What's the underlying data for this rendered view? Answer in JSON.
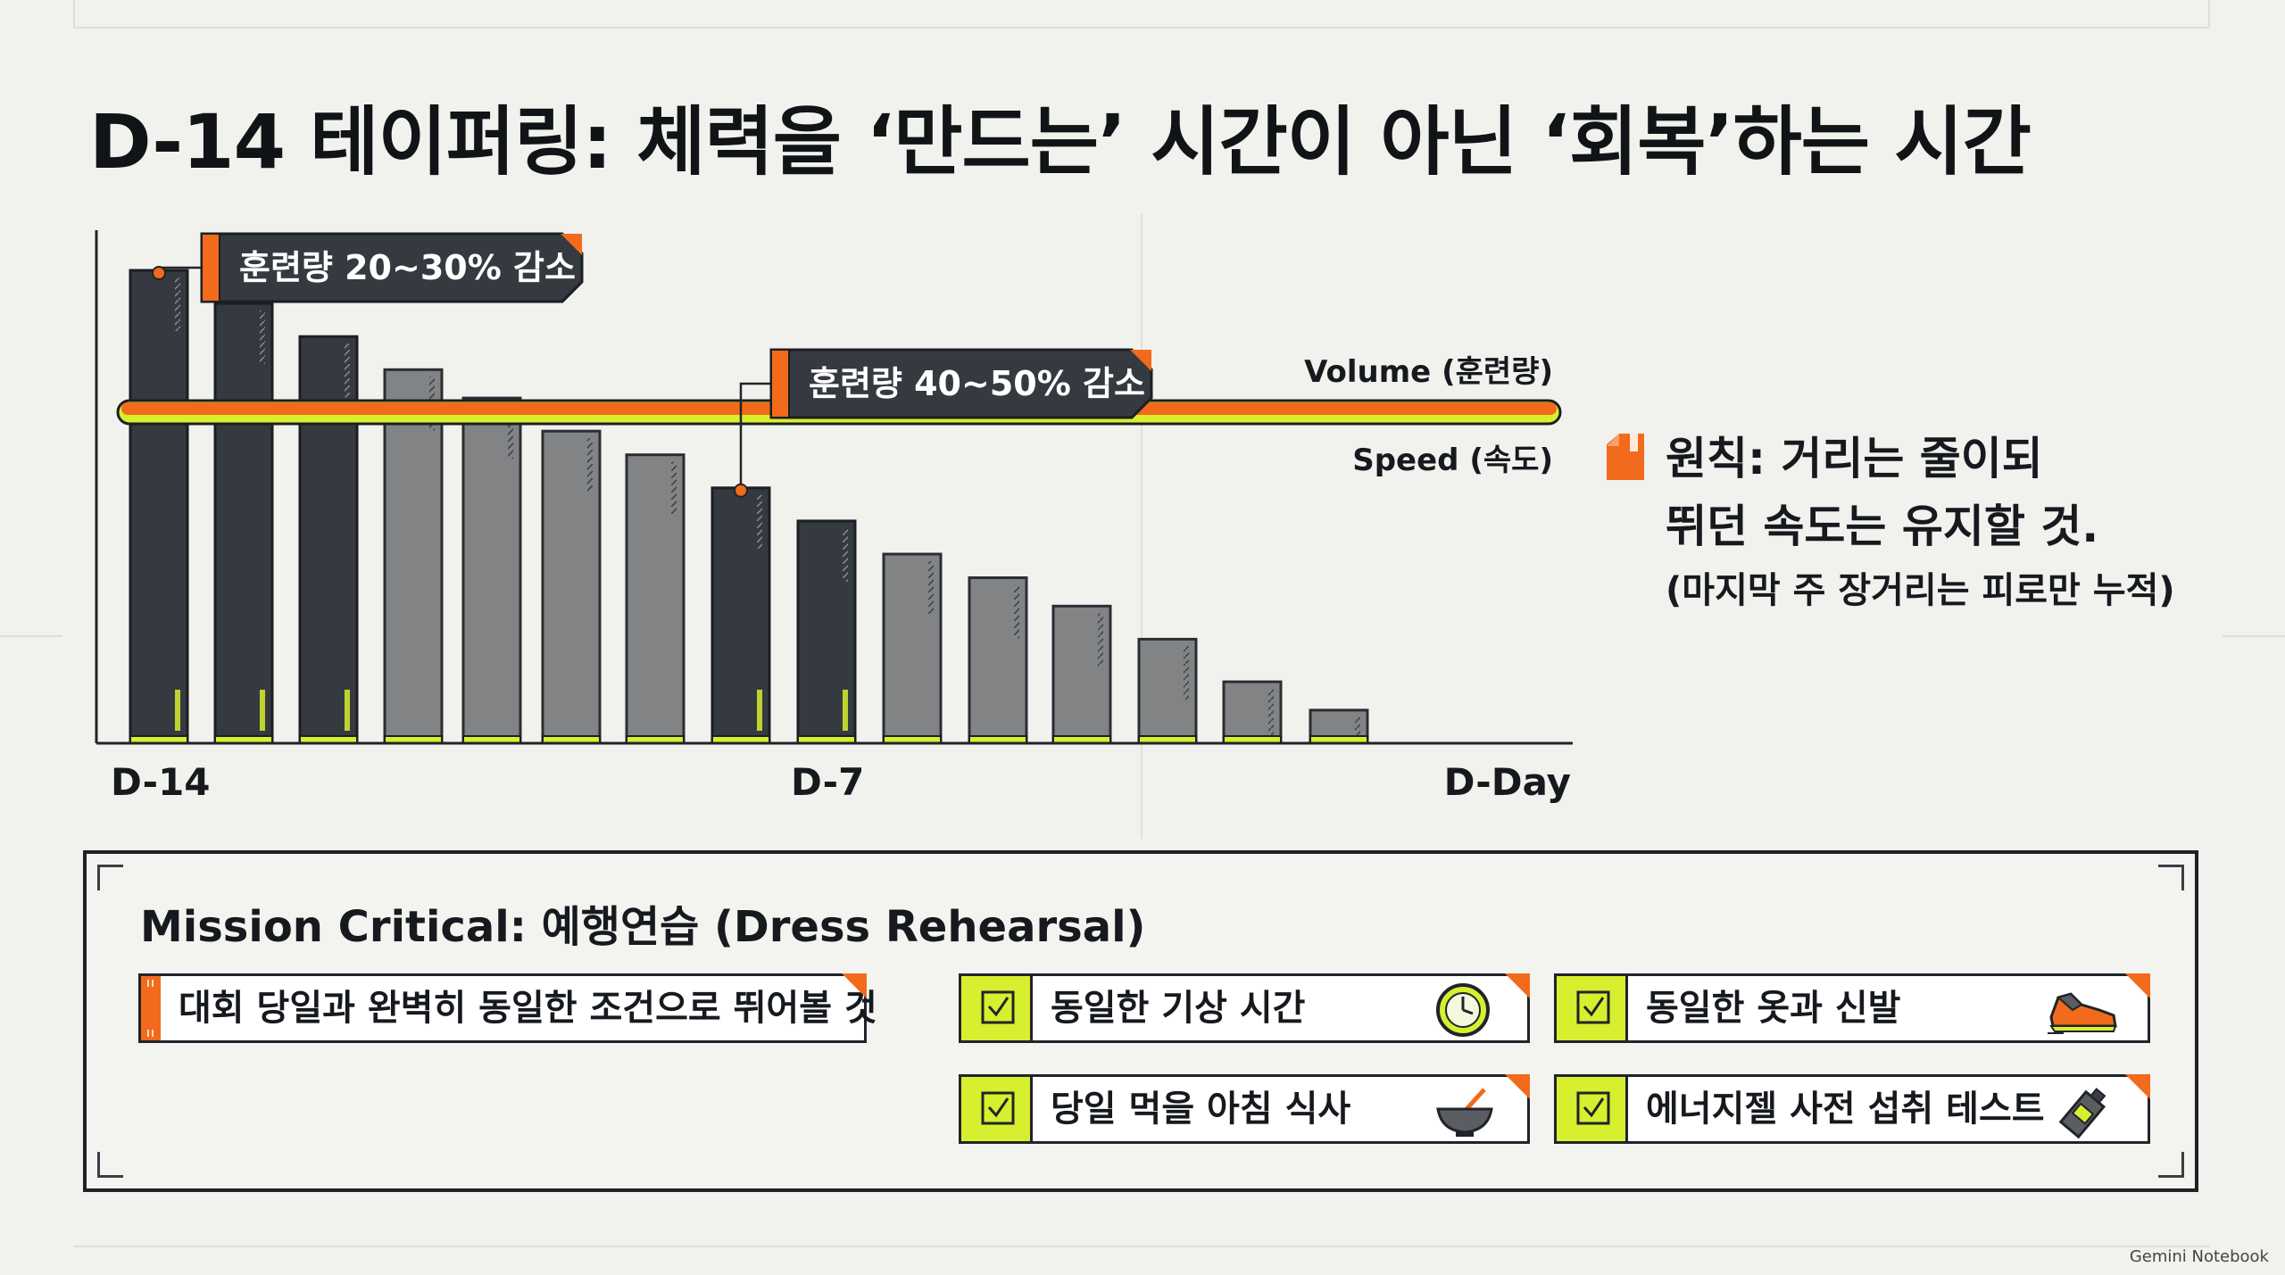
{
  "title": "D-14 테이퍼링: 체력을 ‘만드는’ 시간이 아닌 ‘회복’하는 시간",
  "chart_data": {
    "type": "bar",
    "categories": [
      "D-14",
      "D-13",
      "D-12",
      "D-11",
      "D-10",
      "D-9",
      "D-8",
      "D-7",
      "D-6",
      "D-5",
      "D-4",
      "D-3",
      "D-2",
      "D-1",
      "D-Day"
    ],
    "x_tick_labels": [
      {
        "label": "D-14",
        "category": "D-14"
      },
      {
        "label": "D-7",
        "category": "D-7"
      },
      {
        "label": "D-Day",
        "category": "D-Day"
      }
    ],
    "series": [
      {
        "name": "Volume (훈련량)",
        "values": [
          100,
          93,
          86,
          79,
          73,
          66,
          61,
          54,
          47,
          40,
          35,
          29,
          22,
          13,
          7
        ]
      }
    ],
    "bar_shades": [
      "dark",
      "dark",
      "dark",
      "gray",
      "gray",
      "gray",
      "gray",
      "dark",
      "dark",
      "gray",
      "gray",
      "gray",
      "gray",
      "gray",
      "gray"
    ],
    "speed_line": {
      "name": "Speed (속도)",
      "value": 70
    },
    "ylim": [
      0,
      110
    ],
    "annotations": [
      {
        "text": "훈련량 20~30% 감소",
        "category": "D-14"
      },
      {
        "text": "훈련량 40~50% 감소",
        "category": "D-7"
      }
    ],
    "colors": {
      "dark_bar": "#353a40",
      "gray_bar": "#818385",
      "speed_line": "#f26a1b",
      "accent_lime": "#d7ef2e"
    },
    "grid": false
  },
  "principle": {
    "line1": "원칙: 거리는 줄이되",
    "line2": "뛰던 속도는 유지할 것.",
    "note": "(마지막 주 장거리는 피로만 누적)",
    "icon": "bookmark-icon"
  },
  "mission": {
    "title": "Mission Critical: 예행연습 (Dress Rehearsal)",
    "lead": "대회 당일과 완벽히 동일한 조건으로 뛰어볼 것",
    "items": [
      {
        "label": "동일한 기상 시간",
        "icon": "clock-icon"
      },
      {
        "label": "동일한 옷과 신발",
        "icon": "running-shoe-icon"
      },
      {
        "label": "당일 먹을 아침 식사",
        "icon": "bowl-icon"
      },
      {
        "label": "에너지젤 사전 섭취 테스트",
        "icon": "energy-gel-icon"
      }
    ]
  },
  "footer": {
    "brand": "Gemini Notebook"
  }
}
